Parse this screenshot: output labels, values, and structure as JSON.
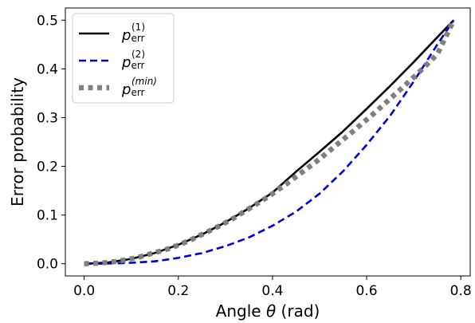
{
  "chart_data": {
    "type": "line",
    "xlabel_prefix": "Angle ",
    "xlabel_symbol": "θ",
    "xlabel_suffix": " (rad)",
    "ylabel": "Error probability",
    "xlim": [
      -0.04,
      0.82
    ],
    "ylim": [
      -0.025,
      0.525
    ],
    "xticks": [
      "0.0",
      "0.2",
      "0.4",
      "0.6",
      "0.8"
    ],
    "xtick_values": [
      0.0,
      0.2,
      0.4,
      0.6,
      0.8
    ],
    "yticks": [
      "0.0",
      "0.1",
      "0.2",
      "0.3",
      "0.4",
      "0.5"
    ],
    "ytick_values": [
      0.0,
      0.1,
      0.2,
      0.3,
      0.4,
      0.5
    ],
    "grid": false,
    "legend_position": "top-left",
    "series": [
      {
        "id": "p1",
        "name_base": "p",
        "name_sub": "err",
        "name_sup": "(1)",
        "color": "#000000",
        "style": "solid",
        "x": [
          0.0,
          0.05,
          0.1,
          0.15,
          0.2,
          0.25,
          0.3,
          0.35,
          0.4,
          0.45,
          0.5,
          0.55,
          0.6,
          0.65,
          0.7,
          0.75,
          0.785
        ],
        "y": [
          0.0,
          0.0025,
          0.01,
          0.022,
          0.039,
          0.06,
          0.085,
          0.114,
          0.146,
          0.189,
          0.23,
          0.272,
          0.318,
          0.365,
          0.414,
          0.465,
          0.5
        ]
      },
      {
        "id": "p2",
        "name_base": "p",
        "name_sub": "err",
        "name_sup": "(2)",
        "color": "#0000dd",
        "style": "dashed",
        "x": [
          0.0,
          0.05,
          0.1,
          0.15,
          0.2,
          0.25,
          0.3,
          0.35,
          0.4,
          0.45,
          0.5,
          0.55,
          0.6,
          0.65,
          0.7,
          0.75,
          0.785
        ],
        "y": [
          0.0,
          0.0003,
          0.002,
          0.005,
          0.012,
          0.022,
          0.036,
          0.054,
          0.078,
          0.107,
          0.144,
          0.19,
          0.244,
          0.304,
          0.374,
          0.45,
          0.5
        ]
      },
      {
        "id": "pmin",
        "name_base": "p",
        "name_sub": "err",
        "name_sup": "(min)",
        "color": "#808080",
        "style": "dotted-markers",
        "x": [
          0.0,
          0.03,
          0.07,
          0.11,
          0.14,
          0.18,
          0.22,
          0.25,
          0.29,
          0.32,
          0.36,
          0.39,
          0.43,
          0.47,
          0.5,
          0.54,
          0.57,
          0.61,
          0.64,
          0.68,
          0.71,
          0.75,
          0.785
        ],
        "y": [
          0.0,
          0.001,
          0.005,
          0.012,
          0.02,
          0.031,
          0.046,
          0.06,
          0.079,
          0.095,
          0.119,
          0.137,
          0.164,
          0.193,
          0.215,
          0.247,
          0.271,
          0.304,
          0.33,
          0.365,
          0.392,
          0.43,
          0.5
        ]
      }
    ]
  }
}
